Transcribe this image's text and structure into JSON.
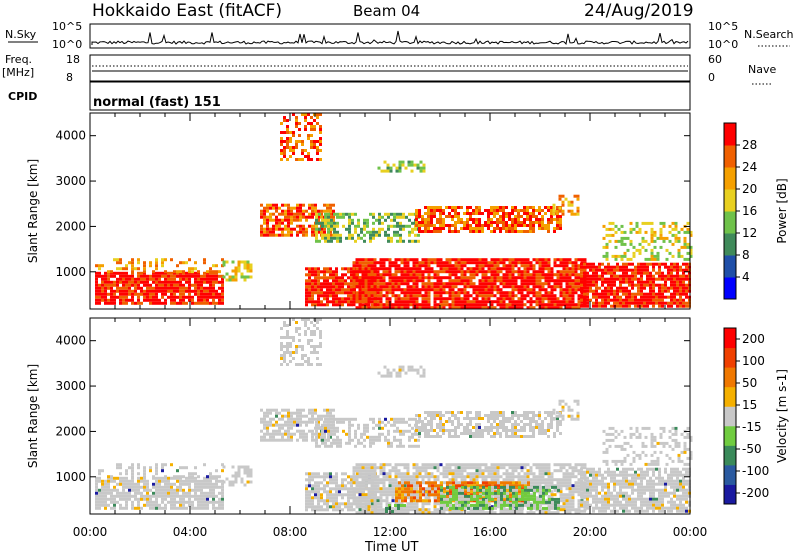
{
  "header": {
    "station": "Hokkaido East (fitACF)",
    "beam": "Beam 04",
    "date": "24/Aug/2019"
  },
  "noise_panel": {
    "left_label": "N.Sky",
    "right_label": "N.Search",
    "left_ticks": [
      "10^5",
      "10^0"
    ],
    "right_ticks": [
      "10^5",
      "10^0"
    ]
  },
  "freq_panel": {
    "label_line1": "Freq.",
    "label_line2": "[MHz]",
    "left_ticks": [
      "18",
      "8"
    ],
    "right_ticks": [
      "60",
      "0"
    ],
    "right_label": "Nave"
  },
  "cpid_panel": {
    "label": "CPID",
    "value": "normal (fast) 151"
  },
  "chart_data": [
    {
      "type": "heatmap",
      "panel": "power",
      "xlabel": "Time UT",
      "ylabel": "Slant Range [km]",
      "x_ticks": [
        "00:00",
        "04:00",
        "08:00",
        "12:00",
        "16:00",
        "20:00",
        "00:00"
      ],
      "y_ticks": [
        4000,
        3000,
        2000,
        1000
      ],
      "xlim_hours": [
        0,
        24
      ],
      "ylim_km": [
        180,
        4500
      ],
      "colorbar": {
        "label": "Power [dB]",
        "ticks": [
          28,
          24,
          20,
          16,
          12,
          8,
          4
        ],
        "range": [
          0,
          32
        ],
        "colors": [
          "#0000ff",
          "#1f4fa8",
          "#3f8a5a",
          "#6fc24a",
          "#e8d020",
          "#f5a000",
          "#f06000",
          "#ff0000"
        ]
      }
    },
    {
      "type": "heatmap",
      "panel": "velocity",
      "xlabel": "Time UT",
      "ylabel": "Slant Range [km]",
      "x_ticks": [
        "00:00",
        "04:00",
        "08:00",
        "12:00",
        "16:00",
        "20:00",
        "00:00"
      ],
      "y_ticks": [
        4000,
        3000,
        2000,
        1000
      ],
      "xlim_hours": [
        0,
        24
      ],
      "ylim_km": [
        180,
        4500
      ],
      "colorbar": {
        "label": "Velocity [m s-1]",
        "ticks": [
          200,
          100,
          50,
          15,
          -15,
          -50,
          -100,
          -200
        ],
        "colors": [
          "#1a1aa0",
          "#2a5aa0",
          "#3a8a5a",
          "#70cc40",
          "#c8c8c8",
          "#f5b000",
          "#f07800",
          "#f04000",
          "#ff0000"
        ]
      }
    }
  ],
  "x_axis_title": "Time UT"
}
